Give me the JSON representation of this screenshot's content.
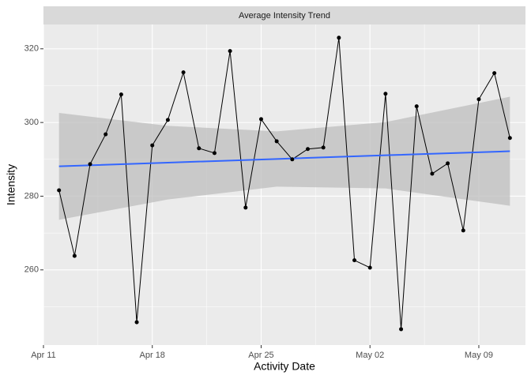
{
  "chart_data": {
    "type": "line",
    "title": "Average Intensity Trend",
    "x_label": "Activity Date",
    "y_label": "Intensity",
    "x": [
      "Apr 12",
      "Apr 13",
      "Apr 14",
      "Apr 15",
      "Apr 16",
      "Apr 17",
      "Apr 18",
      "Apr 19",
      "Apr 20",
      "Apr 21",
      "Apr 22",
      "Apr 23",
      "Apr 24",
      "Apr 25",
      "Apr 26",
      "Apr 27",
      "Apr 28",
      "Apr 29",
      "Apr 30",
      "May 01",
      "May 02",
      "May 03",
      "May 04",
      "May 05",
      "May 06",
      "May 07",
      "May 08",
      "May 09",
      "May 10",
      "May 11"
    ],
    "values": [
      281.6,
      263.8,
      288.7,
      296.8,
      307.6,
      245.8,
      293.8,
      300.7,
      313.6,
      293.0,
      291.7,
      319.4,
      276.9,
      300.9,
      294.9,
      290.0,
      292.8,
      293.2,
      323.0,
      262.6,
      260.6,
      307.8,
      243.9,
      304.4,
      286.1,
      288.9,
      270.7,
      306.3,
      313.4,
      295.8
    ],
    "color": "#000000",
    "trend": {
      "x": [
        "Apr 12",
        "Apr 19",
        "Apr 26",
        "May 03",
        "May 11"
      ],
      "values": [
        288.1,
        289.1,
        290.1,
        291.1,
        292.2
      ],
      "lower": [
        273.6,
        279.1,
        282.6,
        282.1,
        277.4
      ],
      "upper": [
        302.6,
        299.1,
        297.6,
        300.1,
        307.0
      ],
      "color": "#3366ff",
      "band_color": "#bebebe"
    },
    "xlim": [
      "Apr 11",
      "May 12"
    ],
    "xticks": [
      "Apr 11",
      "Apr 18",
      "Apr 25",
      "May 02",
      "May 09"
    ],
    "ylim": [
      239.6,
      326.6
    ],
    "yticks": [
      260,
      280,
      300,
      320
    ],
    "grid": true
  }
}
